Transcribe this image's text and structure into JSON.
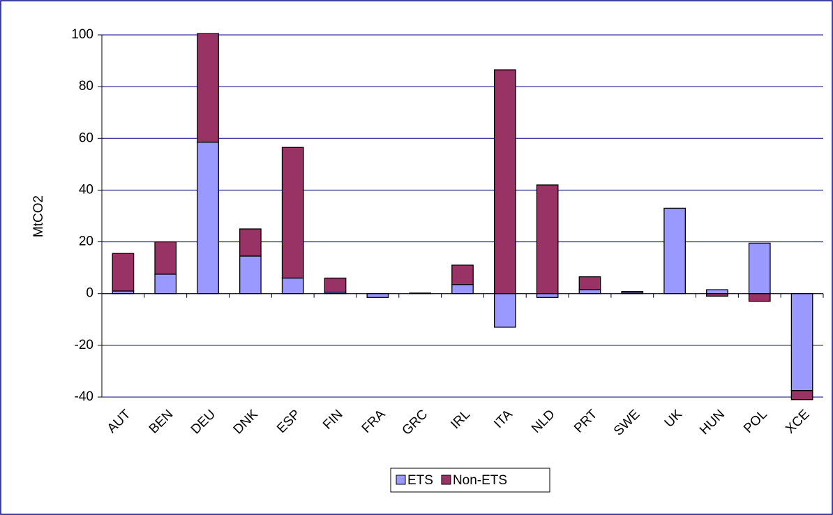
{
  "chart_data": {
    "type": "bar",
    "stacked": true,
    "y_label": "MtCO2",
    "categories": [
      "AUT",
      "BEN",
      "DEU",
      "DNK",
      "ESP",
      "FIN",
      "FRA",
      "GRC",
      "IRL",
      "ITA",
      "NLD",
      "PRT",
      "SWE",
      "UK",
      "HUN",
      "POL",
      "XCE"
    ],
    "series": [
      {
        "name": "ETS",
        "color": "#9999ff",
        "values": [
          1,
          7.5,
          58.5,
          14.5,
          6,
          0.5,
          -1.5,
          0.2,
          3.5,
          -13,
          -1.5,
          1.5,
          0.5,
          33,
          1.5,
          19.5,
          -37.5
        ]
      },
      {
        "name": "Non-ETS",
        "color": "#993366",
        "values": [
          14.5,
          12.5,
          42,
          10.5,
          50.5,
          5.5,
          0,
          0,
          7.5,
          86.5,
          42,
          5,
          0.3,
          0,
          -1,
          -3,
          -3.5
        ]
      }
    ],
    "ylim": [
      -40,
      100
    ],
    "yticks": [
      -40,
      -20,
      0,
      20,
      40,
      60,
      80,
      100
    ],
    "grid": true,
    "legend": "bottom"
  }
}
